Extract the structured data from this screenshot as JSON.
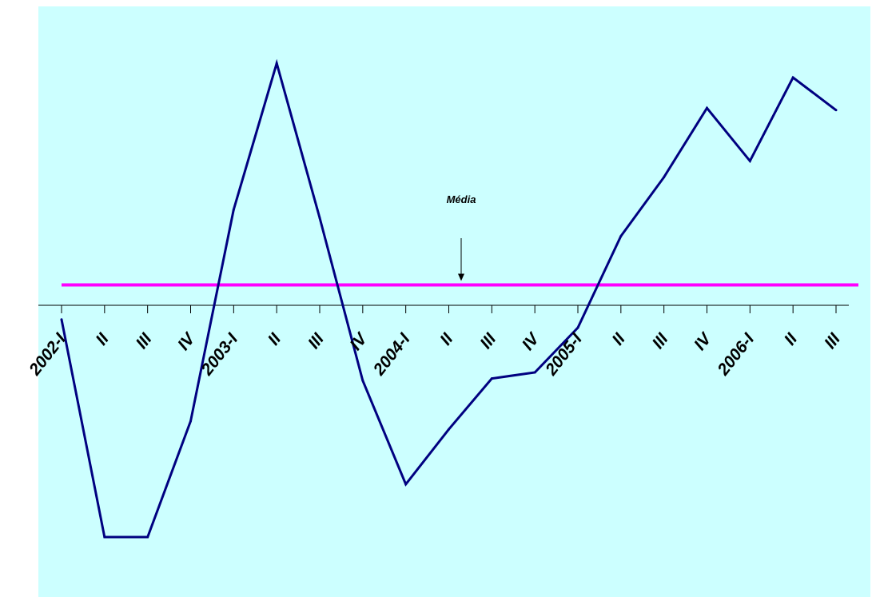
{
  "chart_data": {
    "type": "line",
    "title": "",
    "xlabel": "",
    "ylabel": "",
    "categories": [
      "2002-I",
      "II",
      "III",
      "IV",
      "2003-I",
      "II",
      "III",
      "IV",
      "2004-I",
      "II",
      "III",
      "IV",
      "2005-I",
      "II",
      "III",
      "IV",
      "2006-I",
      "II",
      "III"
    ],
    "series": [
      {
        "values": [
          -0.07,
          -1.14,
          -1.14,
          -0.57,
          0.47,
          1.19,
          0.43,
          -0.37,
          -0.88,
          -0.61,
          -0.36,
          -0.33,
          -0.11,
          0.34,
          0.63,
          0.97,
          0.71,
          1.12,
          0.96
        ]
      }
    ],
    "reference_line": {
      "value": 0.1,
      "label": "Média"
    },
    "ylim": [
      -1.38,
      1.47
    ],
    "grid": false,
    "legend": "none",
    "colors": {
      "plot_background": "#ccffff",
      "series_line": "#000080",
      "reference_line": "#ff00ff",
      "axis": "#000000"
    }
  }
}
